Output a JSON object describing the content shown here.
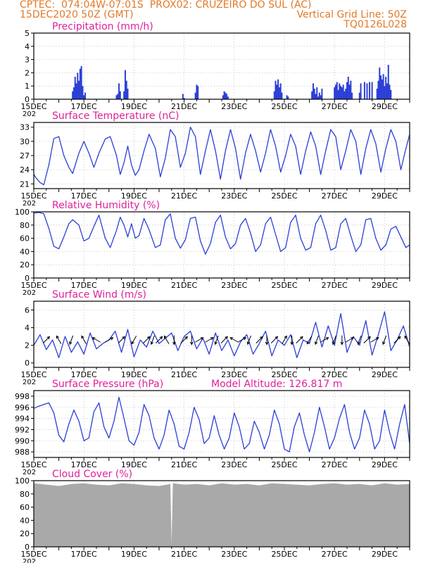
{
  "header": {
    "line1_left": "CPTEC:  074:04W-07:01S  PROX02: CRUZEIRO DO SUL (AC)",
    "line2_left": "15DEC2020 50Z (GMT)",
    "line2_right": "Vertical Grid Line: 50Z",
    "line3_right": "TQ0126L028"
  },
  "colors": {
    "header_text": "#e07a2a",
    "panel_title": "#e0209a",
    "series": "#2b3fd6",
    "arrows": "#000000",
    "cloud": "#a9a9a9",
    "grid": "#bdbdbd"
  },
  "chart_data": [
    {
      "id": "precip",
      "type": "bar",
      "title": "Precipitation (mm/h)",
      "ylim": [
        0,
        5
      ],
      "yticks": [
        0,
        1,
        2,
        3,
        4,
        5
      ],
      "xlim": [
        15,
        30
      ],
      "xticks": [
        15,
        17,
        19,
        21,
        23,
        25,
        27,
        29
      ],
      "xtick_labels": [
        "15DEC",
        "17DEC",
        "19DEC",
        "21DEC",
        "23DEC",
        "25DEC",
        "27DEC",
        "29DEC"
      ],
      "x": [
        16.55,
        16.6,
        16.65,
        16.7,
        16.75,
        16.8,
        16.85,
        16.9,
        16.95,
        17.0,
        17.05,
        18.3,
        18.35,
        18.4,
        18.45,
        18.6,
        18.65,
        18.7,
        18.75,
        20.95,
        21.0,
        21.45,
        21.5,
        21.55,
        22.55,
        22.6,
        22.65,
        22.7,
        22.75,
        24.6,
        24.65,
        24.7,
        24.75,
        24.8,
        24.85,
        24.9,
        25.1,
        25.15,
        26.1,
        26.15,
        26.2,
        26.25,
        26.3,
        26.35,
        26.4,
        26.45,
        26.5,
        27.0,
        27.05,
        27.1,
        27.15,
        27.2,
        27.25,
        27.3,
        27.35,
        27.4,
        27.45,
        27.5,
        27.55,
        27.6,
        27.65,
        27.7,
        28.0,
        28.05,
        28.2,
        28.3,
        28.4,
        28.5,
        28.7,
        28.75,
        28.8,
        28.85,
        28.9,
        28.95,
        29.0,
        29.05,
        29.1,
        29.15,
        29.2,
        29.25
      ],
      "values": [
        0.6,
        0.9,
        1.7,
        1.2,
        2.0,
        1.4,
        2.3,
        2.5,
        1.0,
        0.3,
        0.5,
        0.3,
        0.4,
        1.2,
        0.6,
        0.6,
        2.2,
        1.4,
        0.8,
        0.4,
        0.1,
        0.5,
        1.1,
        1.0,
        0.3,
        0.6,
        0.5,
        0.4,
        0.2,
        0.6,
        1.4,
        1.1,
        1.5,
        0.9,
        1.2,
        0.5,
        0.3,
        0.2,
        0.6,
        1.2,
        0.8,
        0.4,
        0.9,
        0.2,
        0.5,
        0.3,
        0.8,
        0.9,
        1.1,
        1.3,
        0.7,
        1.2,
        1.0,
        0.9,
        1.1,
        0.6,
        0.8,
        1.3,
        1.7,
        1.1,
        1.4,
        0.5,
        0.5,
        1.2,
        1.3,
        1.2,
        1.3,
        1.3,
        0.8,
        1.4,
        2.4,
        1.8,
        1.5,
        1.9,
        1.0,
        1.7,
        1.2,
        2.6,
        1.1,
        0.7
      ]
    },
    {
      "id": "temp",
      "type": "line",
      "title": "Surface Temperature (nC)",
      "ylim": [
        20,
        34
      ],
      "yticks": [
        21,
        24,
        27,
        30,
        33
      ],
      "xlim": [
        15,
        30
      ],
      "xticks": [
        15,
        17,
        19,
        21,
        23,
        25,
        27,
        29
      ],
      "xtick_labels": [
        "15DEC",
        "17DEC",
        "19DEC",
        "21DEC",
        "23DEC",
        "25DEC",
        "27DEC",
        "29DEC"
      ],
      "x": [
        15.0,
        15.1,
        15.25,
        15.4,
        15.6,
        15.8,
        16.0,
        16.2,
        16.4,
        16.55,
        16.8,
        17.0,
        17.2,
        17.4,
        17.6,
        17.85,
        18.05,
        18.3,
        18.45,
        18.6,
        18.75,
        18.9,
        19.05,
        19.2,
        19.4,
        19.6,
        19.85,
        20.05,
        20.25,
        20.45,
        20.65,
        20.85,
        21.05,
        21.25,
        21.45,
        21.65,
        21.85,
        22.05,
        22.25,
        22.45,
        22.65,
        22.85,
        23.05,
        23.25,
        23.45,
        23.65,
        23.85,
        24.05,
        24.25,
        24.45,
        24.65,
        24.85,
        25.05,
        25.25,
        25.45,
        25.65,
        25.85,
        26.05,
        26.25,
        26.45,
        26.65,
        26.85,
        27.05,
        27.25,
        27.45,
        27.65,
        27.85,
        28.05,
        28.25,
        28.45,
        28.65,
        28.85,
        29.05,
        29.25,
        29.45,
        29.65,
        29.85,
        30.0
      ],
      "values": [
        23.0,
        22.2,
        21.3,
        20.8,
        25.0,
        30.6,
        31.0,
        27.0,
        24.5,
        23.2,
        27.5,
        30.0,
        27.5,
        24.5,
        27.5,
        30.5,
        31.0,
        27.0,
        23.0,
        25.5,
        29.0,
        25.0,
        22.8,
        24.0,
        28.0,
        31.5,
        28.5,
        22.5,
        26.5,
        32.5,
        31.0,
        24.5,
        27.5,
        33.0,
        31.0,
        23.0,
        28.0,
        32.5,
        28.0,
        22.0,
        28.0,
        32.5,
        28.5,
        22.0,
        27.5,
        31.5,
        28.0,
        23.5,
        27.5,
        32.5,
        29.0,
        23.5,
        27.0,
        31.5,
        29.0,
        23.0,
        28.0,
        32.0,
        29.0,
        23.0,
        28.0,
        32.5,
        31.0,
        24.0,
        28.0,
        32.5,
        30.0,
        23.0,
        28.5,
        32.5,
        29.5,
        23.5,
        28.5,
        32.5,
        30.0,
        24.0,
        28.5,
        31.5
      ]
    },
    {
      "id": "rh",
      "type": "line",
      "title": "Relative Humidity (%)",
      "ylim": [
        0,
        100
      ],
      "yticks": [
        0,
        20,
        40,
        60,
        80,
        100
      ],
      "xlim": [
        15,
        30
      ],
      "xticks": [
        15,
        17,
        19,
        21,
        23,
        25,
        27,
        29
      ],
      "xtick_labels": [
        "15DEC",
        "17DEC",
        "19DEC",
        "21DEC",
        "23DEC",
        "25DEC",
        "27DEC",
        "29DEC"
      ],
      "x": [
        15.0,
        15.2,
        15.4,
        15.6,
        15.8,
        16.0,
        16.2,
        16.4,
        16.55,
        16.8,
        17.0,
        17.2,
        17.4,
        17.6,
        17.85,
        18.05,
        18.3,
        18.45,
        18.6,
        18.75,
        18.9,
        19.05,
        19.2,
        19.4,
        19.6,
        19.85,
        20.05,
        20.25,
        20.45,
        20.65,
        20.85,
        21.05,
        21.25,
        21.45,
        21.65,
        21.85,
        22.05,
        22.25,
        22.45,
        22.65,
        22.85,
        23.05,
        23.25,
        23.45,
        23.65,
        23.85,
        24.05,
        24.25,
        24.45,
        24.65,
        24.85,
        25.05,
        25.25,
        25.45,
        25.65,
        25.85,
        26.05,
        26.25,
        26.45,
        26.65,
        26.85,
        27.05,
        27.25,
        27.45,
        27.65,
        27.85,
        28.05,
        28.25,
        28.45,
        28.65,
        28.85,
        29.05,
        29.25,
        29.45,
        29.65,
        29.85,
        30.0
      ],
      "values": [
        98,
        99,
        97,
        75,
        48,
        44,
        62,
        82,
        88,
        80,
        56,
        60,
        78,
        95,
        60,
        46,
        72,
        92,
        80,
        62,
        82,
        60,
        64,
        90,
        73,
        46,
        50,
        88,
        97,
        60,
        45,
        58,
        90,
        92,
        56,
        36,
        52,
        84,
        95,
        62,
        44,
        52,
        80,
        90,
        68,
        40,
        50,
        82,
        92,
        66,
        40,
        46,
        84,
        95,
        60,
        42,
        46,
        82,
        95,
        72,
        42,
        46,
        82,
        90,
        64,
        40,
        50,
        88,
        90,
        60,
        42,
        50,
        74,
        78,
        62,
        46,
        50
      ]
    },
    {
      "id": "wind",
      "type": "line",
      "title": "Surface Wind (m/s)",
      "ylim": [
        -0.5,
        7
      ],
      "yticks": [
        0,
        2,
        4,
        6
      ],
      "xlim": [
        15,
        30
      ],
      "xticks": [
        15,
        17,
        19,
        21,
        23,
        25,
        27,
        29
      ],
      "xtick_labels": [
        "15DEC",
        "17DEC",
        "19DEC",
        "21DEC",
        "23DEC",
        "25DEC",
        "27DEC",
        "29DEC"
      ],
      "x": [
        15.0,
        15.25,
        15.5,
        15.75,
        16.0,
        16.25,
        16.5,
        16.75,
        17.0,
        17.25,
        17.5,
        17.75,
        18.0,
        18.25,
        18.5,
        18.75,
        19.0,
        19.25,
        19.5,
        19.75,
        20.0,
        20.25,
        20.5,
        20.75,
        21.0,
        21.25,
        21.5,
        21.75,
        22.0,
        22.25,
        22.5,
        22.75,
        23.0,
        23.25,
        23.5,
        23.75,
        24.0,
        24.25,
        24.5,
        24.75,
        25.0,
        25.25,
        25.5,
        25.75,
        26.0,
        26.25,
        26.5,
        26.75,
        27.0,
        27.25,
        27.5,
        27.75,
        28.0,
        28.25,
        28.5,
        28.75,
        29.0,
        29.25,
        29.5,
        29.75,
        30.0
      ],
      "values": [
        2.0,
        3.2,
        1.5,
        2.6,
        0.6,
        3.0,
        1.2,
        2.4,
        1.0,
        3.4,
        1.6,
        2.2,
        2.6,
        3.6,
        1.2,
        3.8,
        0.7,
        2.6,
        1.8,
        3.6,
        2.2,
        2.8,
        3.4,
        1.4,
        3.0,
        3.6,
        1.6,
        2.8,
        1.0,
        3.4,
        1.4,
        2.6,
        0.8,
        2.4,
        3.2,
        1.0,
        2.2,
        3.6,
        0.8,
        2.6,
        2.0,
        3.2,
        0.6,
        2.6,
        2.2,
        4.6,
        1.8,
        4.2,
        2.0,
        5.6,
        1.2,
        3.0,
        2.0,
        4.8,
        0.9,
        3.2,
        5.8,
        1.4,
        2.6,
        4.2,
        1.8
      ],
      "arrow_days": [
        15.5,
        16.0,
        16.5,
        17.0,
        17.5,
        18.0,
        18.5,
        19.0,
        19.5,
        19.75,
        20.0,
        20.3,
        20.6,
        21.0,
        21.3,
        21.6,
        22.0,
        22.3,
        22.6,
        23.0,
        23.3,
        23.6,
        24.0,
        24.3,
        24.6,
        25.0,
        25.3,
        25.6,
        26.0,
        26.3,
        26.6,
        27.0,
        27.3,
        27.6,
        28.0,
        28.3,
        28.6,
        29.0,
        29.5,
        29.9
      ],
      "arrow_dirs_deg": [
        45,
        330,
        200,
        330,
        300,
        60,
        45,
        210,
        45,
        200,
        45,
        330,
        180,
        45,
        180,
        60,
        60,
        200,
        45,
        300,
        60,
        200,
        45,
        180,
        45,
        30,
        180,
        45,
        210,
        200,
        60,
        200,
        180,
        60,
        200,
        45,
        60,
        200,
        45,
        330
      ]
    },
    {
      "id": "pres",
      "type": "line",
      "title": "Surface Pressure (hPa)",
      "annotation": "Model Altitude: 126.817  m",
      "ylim": [
        987,
        999
      ],
      "yticks": [
        988,
        990,
        992,
        994,
        996,
        998
      ],
      "xlim": [
        15,
        30
      ],
      "xticks": [
        15,
        17,
        19,
        21,
        23,
        25,
        27,
        29
      ],
      "xtick_labels": [
        "15DEC",
        "17DEC",
        "19DEC",
        "21DEC",
        "23DEC",
        "25DEC",
        "27DEC",
        "29DEC"
      ],
      "x": [
        15.0,
        15.2,
        15.4,
        15.6,
        15.8,
        16.0,
        16.2,
        16.4,
        16.6,
        16.8,
        17.0,
        17.2,
        17.4,
        17.6,
        17.8,
        18.0,
        18.2,
        18.4,
        18.6,
        18.8,
        19.0,
        19.2,
        19.4,
        19.6,
        19.8,
        20.0,
        20.2,
        20.4,
        20.6,
        20.8,
        21.0,
        21.2,
        21.4,
        21.6,
        21.8,
        22.0,
        22.2,
        22.4,
        22.6,
        22.8,
        23.0,
        23.2,
        23.4,
        23.6,
        23.8,
        24.0,
        24.2,
        24.4,
        24.6,
        24.8,
        25.0,
        25.2,
        25.4,
        25.6,
        25.8,
        26.0,
        26.2,
        26.4,
        26.6,
        26.8,
        27.0,
        27.2,
        27.4,
        27.6,
        27.8,
        28.0,
        28.2,
        28.4,
        28.6,
        28.8,
        29.0,
        29.2,
        29.4,
        29.6,
        29.8,
        30.0
      ],
      "values": [
        995.8,
        996.2,
        996.5,
        996.8,
        995.0,
        991.0,
        989.8,
        993.0,
        995.5,
        993.5,
        990.0,
        990.5,
        995.2,
        996.8,
        992.5,
        990.5,
        993.5,
        997.8,
        994.0,
        990.0,
        989.2,
        991.5,
        996.5,
        994.5,
        990.5,
        988.5,
        991.0,
        995.5,
        993.0,
        989.0,
        988.5,
        991.5,
        996.0,
        993.8,
        989.5,
        990.5,
        994.5,
        991.0,
        988.5,
        990.5,
        995.0,
        992.5,
        988.5,
        989.5,
        993.5,
        991.5,
        988.5,
        991.0,
        995.5,
        993.0,
        988.5,
        988.0,
        992.5,
        995.0,
        991.0,
        988.0,
        991.5,
        996.0,
        992.5,
        988.5,
        990.5,
        994.0,
        996.5,
        991.5,
        988.5,
        990.5,
        995.5,
        993.0,
        988.5,
        990.0,
        995.5,
        991.5,
        988.5,
        993.0,
        996.5,
        989.5
      ]
    },
    {
      "id": "cloud",
      "type": "area",
      "title": "Cloud Cover (%)",
      "ylim": [
        0,
        100
      ],
      "yticks": [
        0,
        20,
        40,
        60,
        80,
        100
      ],
      "xlim": [
        15,
        30
      ],
      "xticks": [
        15,
        17,
        19,
        21,
        23,
        25,
        27,
        29
      ],
      "xtick_labels": [
        "15DEC",
        "17DEC",
        "19DEC",
        "21DEC",
        "23DEC",
        "25DEC",
        "27DEC",
        "29DEC"
      ],
      "x": [
        15.0,
        15.5,
        16.0,
        16.5,
        17.0,
        17.5,
        18.0,
        18.5,
        19.0,
        19.5,
        20.0,
        20.45,
        20.5,
        20.55,
        21.0,
        21.5,
        22.0,
        22.5,
        23.0,
        23.5,
        24.0,
        24.5,
        25.0,
        25.5,
        26.0,
        26.5,
        27.0,
        27.5,
        28.0,
        28.5,
        29.0,
        29.5,
        30.0
      ],
      "values": [
        96,
        94,
        92,
        95,
        96,
        94,
        93,
        96,
        95,
        93,
        92,
        95,
        5,
        96,
        94,
        95,
        93,
        96,
        94,
        95,
        93,
        96,
        95,
        94,
        93,
        95,
        96,
        94,
        95,
        93,
        96,
        94,
        95
      ]
    }
  ],
  "year_label": "202"
}
